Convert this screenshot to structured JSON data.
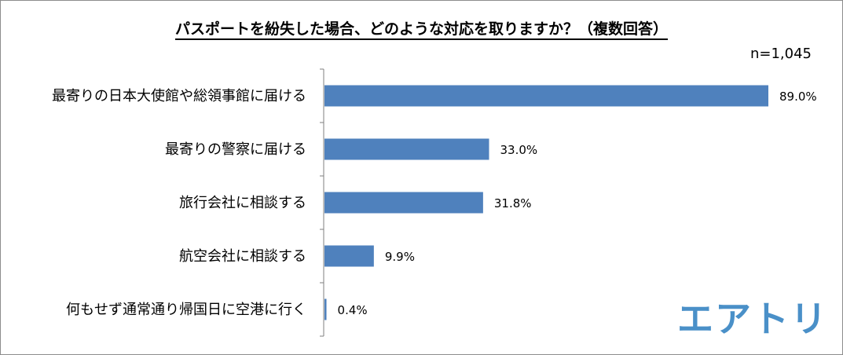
{
  "title": "パスポートを紛失した場合、どのような対応を取りますか？（複数回答）",
  "sample_size": "n=1,045",
  "logo_text": "エアトリ",
  "colors": {
    "bar": "#4f81bd",
    "axis": "#7f7f7f",
    "logo": "#4a90c8"
  },
  "chart_data": {
    "type": "bar",
    "orientation": "horizontal",
    "title": "パスポートを紛失した場合、どのような対応を取りますか？（複数回答）",
    "categories": [
      "最寄りの日本大使館や総領事館に届ける",
      "最寄りの警察に届ける",
      "旅行会社に相談する",
      "航空会社に相談する",
      "何もせず通常通り帰国日に空港に行く"
    ],
    "values": [
      89.0,
      33.0,
      31.8,
      9.9,
      0.4
    ],
    "labels": [
      "89.0%",
      "33.0%",
      "31.8%",
      "9.9%",
      "0.4%"
    ],
    "unit": "%",
    "xlim": [
      0,
      89.0
    ],
    "grid": false
  }
}
